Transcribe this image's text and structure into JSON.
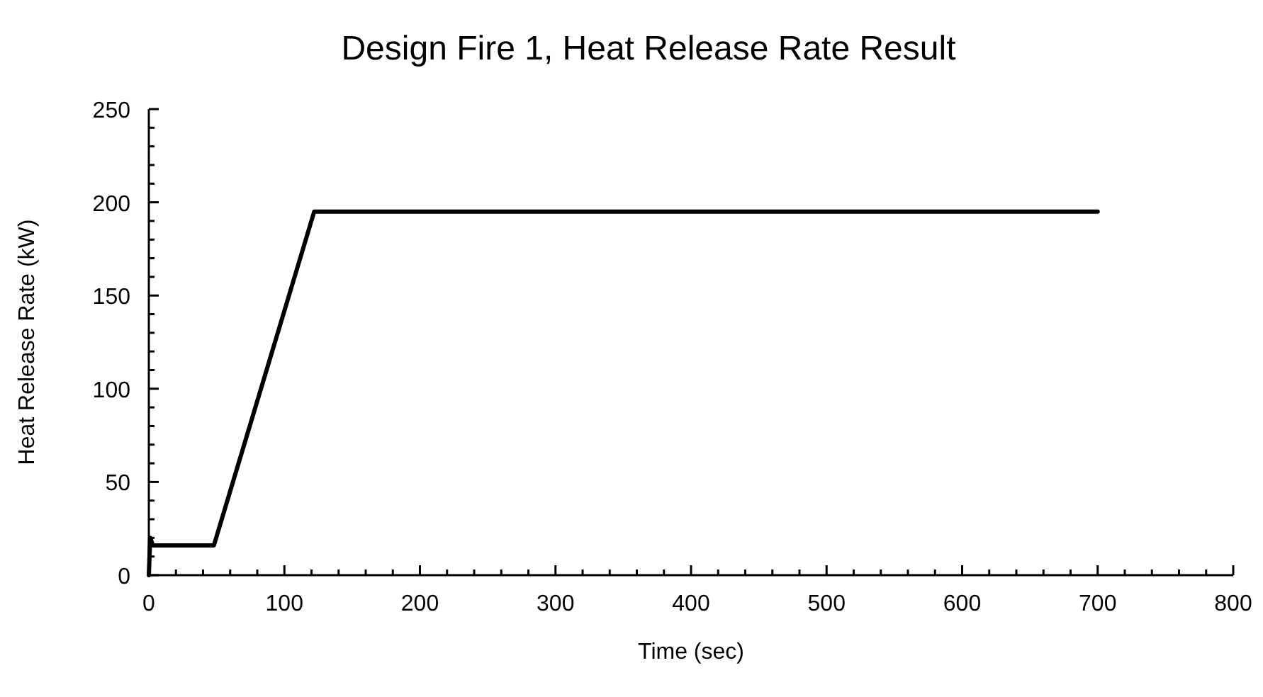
{
  "chart_data": {
    "type": "line",
    "title": "Design Fire 1, Heat Release Rate Result",
    "xlabel": "Time (sec)",
    "ylabel": "Heat Release Rate (kW)",
    "series": [
      {
        "color": "#000000",
        "x": [
          0,
          1,
          3,
          48,
          122,
          700
        ],
        "values": [
          0,
          20,
          16,
          16,
          195,
          195
        ]
      }
    ],
    "xlim": [
      0,
      800
    ],
    "ylim": [
      0,
      250
    ],
    "xticks": [
      0,
      {
        "value": 20,
        "label": null
      },
      {
        "value": 40,
        "label": null
      },
      {
        "value": 60,
        "label": null
      },
      {
        "value": 80,
        "label": null
      },
      100,
      {
        "value": 120,
        "label": null
      },
      {
        "value": 140,
        "label": null
      },
      {
        "value": 160,
        "label": null
      },
      {
        "value": 180,
        "label": null
      },
      200,
      {
        "value": 220,
        "label": null
      },
      {
        "value": 240,
        "label": null
      },
      {
        "value": 260,
        "label": null
      },
      {
        "value": 280,
        "label": null
      },
      300,
      {
        "value": 320,
        "label": null
      },
      {
        "value": 340,
        "label": null
      },
      {
        "value": 360,
        "label": null
      },
      {
        "value": 380,
        "label": null
      },
      400,
      {
        "value": 420,
        "label": null
      },
      {
        "value": 440,
        "label": null
      },
      {
        "value": 460,
        "label": null
      },
      {
        "value": 480,
        "label": null
      },
      500,
      {
        "value": 520,
        "label": null
      },
      {
        "value": 540,
        "label": null
      },
      {
        "value": 560,
        "label": null
      },
      {
        "value": 580,
        "label": null
      },
      600,
      {
        "value": 620,
        "label": null
      },
      {
        "value": 640,
        "label": null
      },
      {
        "value": 660,
        "label": null
      },
      {
        "value": 680,
        "label": null
      },
      700,
      {
        "value": 720,
        "label": null
      },
      {
        "value": 740,
        "label": null
      },
      {
        "value": 760,
        "label": null
      },
      {
        "value": 780,
        "label": null
      },
      800
    ],
    "yticks": [
      0,
      {
        "value": 10,
        "label": null
      },
      {
        "value": 20,
        "label": null
      },
      {
        "value": 30,
        "label": null
      },
      {
        "value": 40,
        "label": null
      },
      50,
      {
        "value": 60,
        "label": null
      },
      {
        "value": 70,
        "label": null
      },
      {
        "value": 80,
        "label": null
      },
      {
        "value": 90,
        "label": null
      },
      100,
      {
        "value": 110,
        "label": null
      },
      {
        "value": 120,
        "label": null
      },
      {
        "value": 130,
        "label": null
      },
      {
        "value": 140,
        "label": null
      },
      150,
      {
        "value": 160,
        "label": null
      },
      {
        "value": 170,
        "label": null
      },
      {
        "value": 180,
        "label": null
      },
      {
        "value": 190,
        "label": null
      },
      200,
      {
        "value": 210,
        "label": null
      },
      {
        "value": 220,
        "label": null
      },
      {
        "value": 230,
        "label": null
      },
      {
        "value": 240,
        "label": null
      },
      250
    ],
    "grid": false,
    "marker": "none",
    "line_style": "solid"
  }
}
